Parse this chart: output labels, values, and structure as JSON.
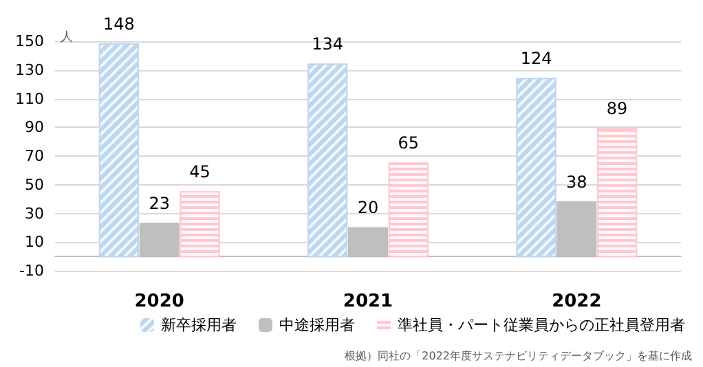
{
  "chart_data": {
    "type": "bar",
    "ylabel": "人",
    "categories": [
      "2020",
      "2021",
      "2022"
    ],
    "series": [
      {
        "name": "新卒採用者",
        "color": "#bdd7ee",
        "values": [
          148,
          134,
          124
        ]
      },
      {
        "name": "中途採用者",
        "color": "#bfbfbf",
        "values": [
          23,
          20,
          38
        ]
      },
      {
        "name": "準社員・パート従業員からの正社員登用者",
        "color": "#ffc7ce",
        "values": [
          45,
          65,
          89
        ]
      }
    ],
    "ylim": [
      -10,
      150
    ],
    "yticks": [
      -10,
      10,
      30,
      50,
      70,
      90,
      110,
      130,
      150
    ],
    "grid": "y",
    "legend": "bottom",
    "data_labels": true,
    "annotations": [
      "根拠）同社の「2022年度サステナビリティデータブック」を基に作成"
    ]
  }
}
